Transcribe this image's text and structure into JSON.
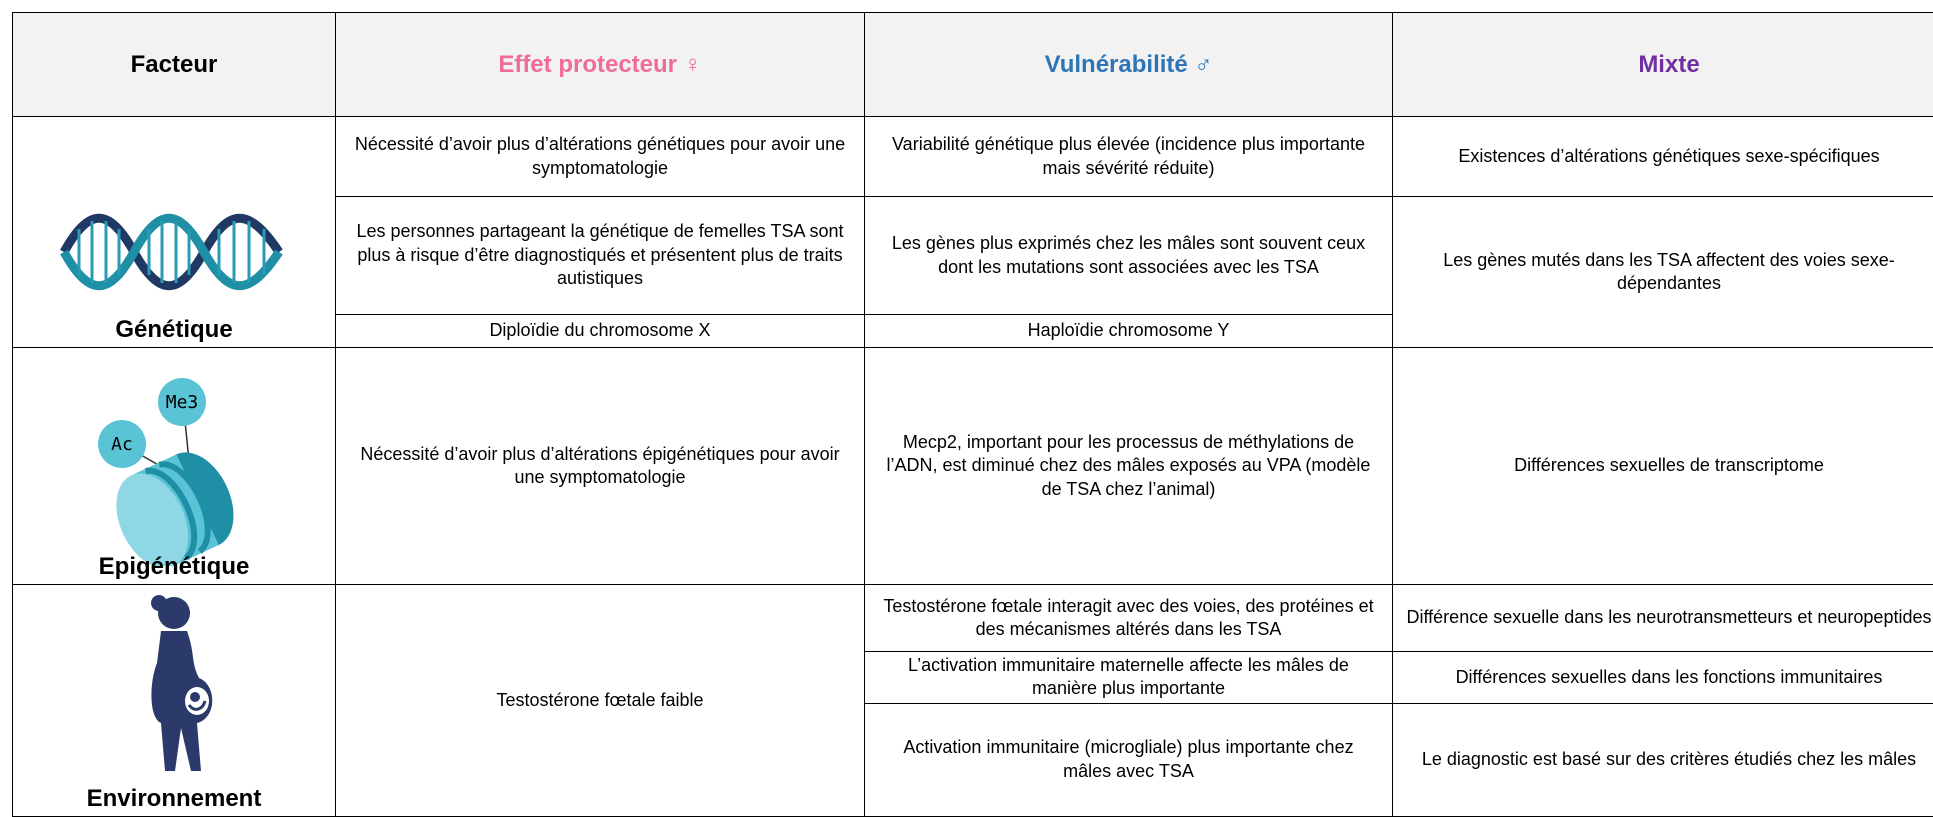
{
  "table": {
    "header": [
      "Facteur",
      "Effet protecteur ♀",
      "Vulnérabilité ♂",
      "Mixte"
    ],
    "factors": [
      {
        "name": "Génétique",
        "protective": [
          "Nécessité d’avoir plus d’altérations génétiques pour avoir une symptomatologie",
          "Les personnes partageant la génétique de femelles TSA sont plus à risque d’être diagnostiqués et présentent plus de traits autistiques",
          "Diploïdie du chromosome X"
        ],
        "vulnerability": [
          "Variabilité génétique plus élevée (incidence plus importante mais sévérité réduite)",
          "Les gènes plus exprimés chez les mâles sont souvent ceux dont les mutations sont associées avec les TSA",
          "Haploïdie chromosome Y"
        ],
        "mixed": [
          "Existences d’altérations génétiques sexe-spécifiques",
          "Les gènes mutés dans les TSA affectent des voies sexe-dépendantes"
        ]
      },
      {
        "name": "Epigénétique",
        "icon_labels": [
          "Ac",
          "Me3"
        ],
        "protective": [
          "Nécessité d’avoir plus d’altérations épigénétiques pour avoir une symptomatologie"
        ],
        "vulnerability": [
          "Mecp2, important pour les processus de méthylations de l’ADN, est diminué chez des mâles exposés au VPA (modèle de TSA chez l’animal)"
        ],
        "mixed": [
          "Différences sexuelles de transcriptome"
        ]
      },
      {
        "name": "Environnement",
        "protective": [
          "Testostérone fœtale faible"
        ],
        "vulnerability": [
          "Testostérone fœtale interagit avec des voies, des protéines et des mécanismes altérés dans les TSA",
          "L’activation immunitaire maternelle affecte les mâles de manière plus importante",
          "Activation immunitaire (microgliale) plus importante chez mâles avec TSA"
        ],
        "mixed": [
          "Différence sexuelle dans les neurotransmetteurs et neuropeptides",
          "Différences sexuelles dans les fonctions immunitaires",
          "Le diagnostic est basé sur des critères étudiés chez les mâles"
        ]
      }
    ]
  }
}
